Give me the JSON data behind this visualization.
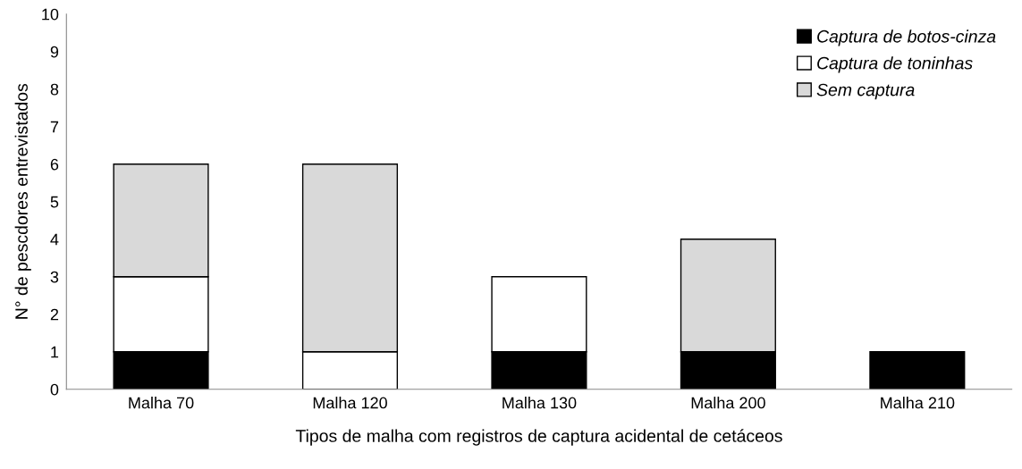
{
  "chart_data": {
    "type": "bar",
    "stacked": true,
    "xlabel": "Tipos de malha com registros de captura acidental de cetáceos",
    "ylabel": "N° de pescdores entrevistados",
    "categories": [
      "Malha 70",
      "Malha 120",
      "Malha 130",
      "Malha 200",
      "Malha 210"
    ],
    "series": [
      {
        "name": "Captura de botos-cinza",
        "color": "#000000",
        "values": [
          1,
          0,
          1,
          1,
          1
        ]
      },
      {
        "name": "Captura de toninhas",
        "color": "#ffffff",
        "values": [
          2,
          1,
          2,
          0,
          0
        ]
      },
      {
        "name": "Sem captura",
        "color": "#d9d9d9",
        "values": [
          3,
          5,
          0,
          3,
          0
        ]
      }
    ],
    "ylim": [
      0,
      10
    ],
    "yticks": [
      0,
      1,
      2,
      3,
      4,
      5,
      6,
      7,
      8,
      9,
      10
    ],
    "grid": false,
    "legend": "top right"
  }
}
